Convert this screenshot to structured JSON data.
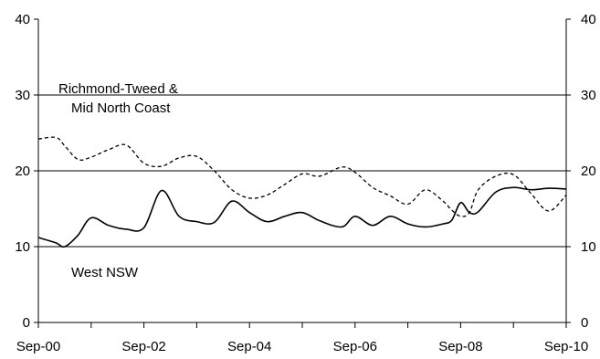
{
  "chart_data": {
    "type": "line",
    "title": "",
    "xlabel": "",
    "ylabel": "",
    "ylim": [
      0,
      40
    ],
    "yticks": [
      "0",
      "10",
      "20",
      "30",
      "40"
    ],
    "y2ticks": [
      "0",
      "10",
      "20",
      "30",
      "40"
    ],
    "xlim": [
      "2000-09",
      "2010-09"
    ],
    "xticks": [
      "Sep-00",
      "Sep-02",
      "Sep-04",
      "Sep-06",
      "Sep-08",
      "Sep-10"
    ],
    "gridlines_y": [
      10,
      20,
      30
    ],
    "annotations": {
      "richmond_line1": "Richmond-Tweed &",
      "richmond_line2": "Mid North Coast",
      "west": "West NSW"
    },
    "series": [
      {
        "label": "Richmond-Tweed & Mid North Coast",
        "style": "dashed",
        "color": "#000000",
        "x": [
          "2000-09",
          "2001-01",
          "2001-03",
          "2001-06",
          "2001-09",
          "2002-01",
          "2002-05",
          "2002-09",
          "2003-01",
          "2003-05",
          "2003-09",
          "2004-01",
          "2004-05",
          "2004-09",
          "2005-01",
          "2005-05",
          "2005-09",
          "2006-01",
          "2006-06",
          "2006-09",
          "2007-01",
          "2007-05",
          "2007-09",
          "2008-01",
          "2008-05",
          "2008-07",
          "2008-09",
          "2008-11",
          "2009-01",
          "2009-05",
          "2009-09",
          "2010-01",
          "2010-05",
          "2010-09"
        ],
        "values": [
          24.2,
          24.4,
          23.3,
          21.5,
          21.8,
          22.8,
          23.4,
          21.0,
          20.6,
          21.7,
          21.9,
          20.0,
          17.5,
          16.4,
          16.8,
          18.2,
          19.6,
          19.3,
          20.5,
          19.8,
          17.8,
          16.7,
          15.6,
          17.5,
          16.0,
          14.8,
          14.0,
          14.5,
          17.5,
          19.3,
          19.5,
          17.0,
          14.7,
          16.8
        ]
      },
      {
        "label": "West NSW",
        "style": "solid",
        "color": "#000000",
        "x": [
          "2000-09",
          "2001-01",
          "2001-03",
          "2001-06",
          "2001-09",
          "2002-01",
          "2002-05",
          "2002-09",
          "2003-01",
          "2003-05",
          "2003-09",
          "2004-01",
          "2004-05",
          "2004-09",
          "2005-01",
          "2005-05",
          "2005-09",
          "2006-01",
          "2006-06",
          "2006-09",
          "2007-01",
          "2007-05",
          "2007-09",
          "2008-01",
          "2008-05",
          "2008-07",
          "2008-09",
          "2008-11",
          "2009-01",
          "2009-05",
          "2009-09",
          "2010-01",
          "2010-05",
          "2010-09"
        ],
        "values": [
          11.2,
          10.5,
          10.0,
          11.5,
          13.8,
          12.8,
          12.3,
          12.5,
          17.4,
          14.0,
          13.3,
          13.2,
          16.0,
          14.5,
          13.3,
          14.0,
          14.5,
          13.4,
          12.6,
          14.0,
          12.8,
          14.0,
          13.0,
          12.6,
          13.0,
          13.5,
          15.8,
          14.5,
          14.6,
          17.2,
          17.8,
          17.5,
          17.7,
          17.6
        ]
      }
    ]
  }
}
